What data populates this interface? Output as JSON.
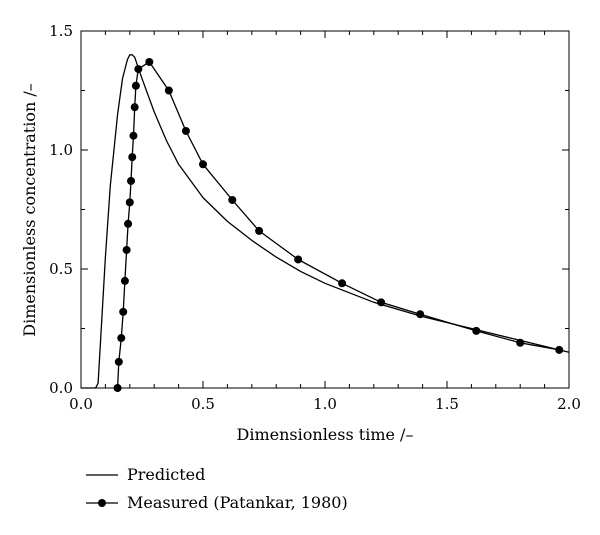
{
  "chart_data": {
    "type": "line",
    "xlabel": "Dimensionless time /–",
    "ylabel": "Dimensionless concentration /–",
    "xlim": [
      0.0,
      2.0
    ],
    "ylim": [
      0.0,
      1.5
    ],
    "xticks": [
      "0.0",
      "0.5",
      "1.0",
      "1.5",
      "2.0"
    ],
    "yticks": [
      "0.0",
      "0.5",
      "1.0",
      "1.5"
    ],
    "grid": false,
    "legend_placement": "bottom-left, below plot",
    "series": [
      {
        "name": "Predicted",
        "style": "line",
        "color": "#000000",
        "x": [
          0.0,
          0.06,
          0.07,
          0.1,
          0.12,
          0.15,
          0.17,
          0.19,
          0.2,
          0.21,
          0.22,
          0.23,
          0.25,
          0.3,
          0.35,
          0.4,
          0.5,
          0.6,
          0.7,
          0.8,
          0.9,
          1.0,
          1.2,
          1.4,
          1.6,
          1.8,
          2.0
        ],
        "y": [
          0.0,
          0.0,
          0.02,
          0.55,
          0.85,
          1.15,
          1.3,
          1.38,
          1.4,
          1.4,
          1.39,
          1.36,
          1.3,
          1.16,
          1.04,
          0.94,
          0.8,
          0.7,
          0.62,
          0.55,
          0.49,
          0.44,
          0.36,
          0.3,
          0.25,
          0.2,
          0.15
        ]
      },
      {
        "name": "Measured (Patankar, 1980)",
        "style": "line-marker",
        "color": "#000000",
        "x": [
          0.15,
          0.155,
          0.165,
          0.173,
          0.18,
          0.187,
          0.193,
          0.2,
          0.205,
          0.21,
          0.215,
          0.22,
          0.225,
          0.235,
          0.28,
          0.36,
          0.43,
          0.5,
          0.62,
          0.73,
          0.89,
          1.07,
          1.23,
          1.39,
          1.62,
          1.8,
          1.96
        ],
        "y": [
          0.0,
          0.11,
          0.21,
          0.32,
          0.45,
          0.58,
          0.69,
          0.78,
          0.87,
          0.97,
          1.06,
          1.18,
          1.27,
          1.34,
          1.37,
          1.25,
          1.08,
          0.94,
          0.79,
          0.66,
          0.54,
          0.44,
          0.36,
          0.31,
          0.24,
          0.19,
          0.16
        ]
      }
    ]
  }
}
